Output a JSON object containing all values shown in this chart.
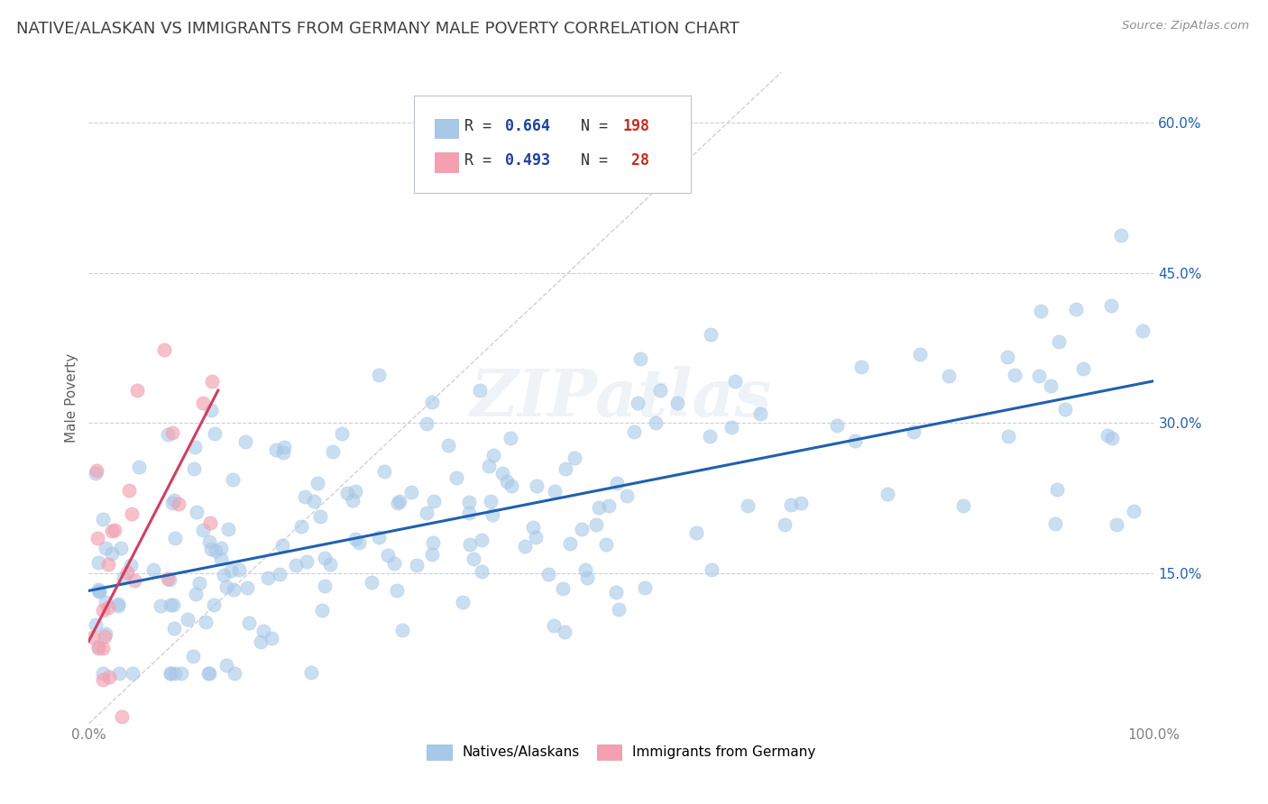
{
  "title": "NATIVE/ALASKAN VS IMMIGRANTS FROM GERMANY MALE POVERTY CORRELATION CHART",
  "source_text": "Source: ZipAtlas.com",
  "ylabel": "Male Poverty",
  "xlim": [
    0,
    1.0
  ],
  "ylim": [
    0,
    0.65
  ],
  "xtick_labels": [
    "0.0%",
    "100.0%"
  ],
  "ytick_labels": [
    "15.0%",
    "30.0%",
    "45.0%",
    "60.0%"
  ],
  "ytick_values": [
    0.15,
    0.3,
    0.45,
    0.6
  ],
  "background_color": "#ffffff",
  "title_color": "#404040",
  "title_fontsize": 13,
  "color_blue": "#a8c8e8",
  "color_pink": "#f4a0b0",
  "line_blue": "#2060b0",
  "line_pink": "#d04060",
  "line_diag": "#c8ccd8",
  "watermark_text": "ZIPatlas",
  "legend_r1": "0.664",
  "legend_n1": "198",
  "legend_r2": "0.493",
  "legend_n2": "28",
  "r_color": "#2040a0",
  "n_color": "#c03020",
  "grid_color": "#c8d0dc",
  "ytick_color": "#2060b0",
  "xtick_color": "#808080"
}
